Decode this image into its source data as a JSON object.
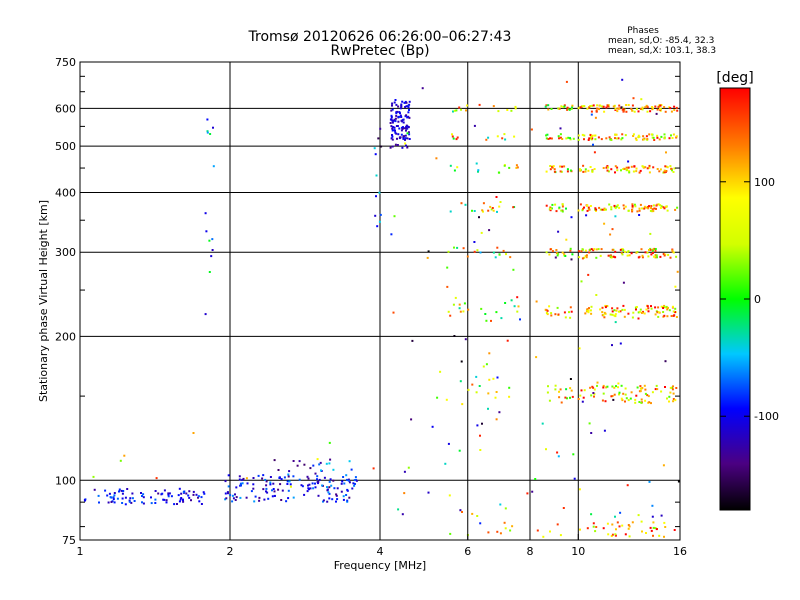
{
  "chart_data": {
    "type": "scatter",
    "title": "Tromsø 20120626 06:26:00–06:27:43",
    "subtitle": "RwPretec (Bp)",
    "xlabel": "Frequency [MHz]",
    "ylabel": "Stationary phase Virtual Height [km]",
    "x_scale": "log",
    "y_scale": "log",
    "xlim": [
      1,
      16
    ],
    "ylim": [
      75,
      750
    ],
    "x_ticks": [
      1,
      2,
      4,
      6,
      8,
      10,
      16
    ],
    "x_tick_labels": [
      "1",
      "2",
      "4",
      "6",
      "8",
      "10",
      "16"
    ],
    "y_ticks": [
      75,
      100,
      200,
      300,
      400,
      500,
      600,
      750
    ],
    "y_tick_labels": [
      "75",
      "100",
      "200",
      "300",
      "400",
      "500",
      "600",
      "750"
    ],
    "grid": true,
    "stats": {
      "heading": "Phases",
      "line_o": "mean, sd,O: -85.4, 32.3",
      "line_x": "mean, sd,X: 103.1, 38.3"
    },
    "colorbar": {
      "label": "[deg]",
      "range": [
        -180,
        180
      ],
      "ticks": [
        100,
        0,
        -100
      ],
      "tick_labels": [
        "100",
        "0",
        "-100"
      ],
      "colormap": "rainbow"
    },
    "clusters": [
      {
        "x": [
          1.02,
          1.78
        ],
        "y": [
          89,
          96
        ],
        "phase": -100,
        "spread": 35,
        "n": 90
      },
      {
        "x": [
          1.95,
          3.6
        ],
        "y": [
          90,
          103
        ],
        "phase": -100,
        "spread": 45,
        "n": 140
      },
      {
        "x": [
          2.4,
          3.6
        ],
        "y": [
          98,
          112
        ],
        "phase": -90,
        "spread": 60,
        "n": 30
      },
      {
        "x": [
          4.2,
          4.6
        ],
        "y": [
          495,
          625
        ],
        "phase": -110,
        "spread": 25,
        "n": 110
      },
      {
        "x": [
          1.78,
          1.86
        ],
        "y": [
          210,
          590
        ],
        "phase": -60,
        "spread": 60,
        "n": 14
      },
      {
        "x": [
          3.9,
          4.05
        ],
        "y": [
          330,
          640
        ],
        "phase": -100,
        "spread": 70,
        "n": 12
      },
      {
        "x": [
          10.0,
          15.8
        ],
        "y": [
          590,
          610
        ],
        "phase": 120,
        "spread": 80,
        "n": 90
      },
      {
        "x": [
          10.0,
          15.8
        ],
        "y": [
          515,
          530
        ],
        "phase": 100,
        "spread": 90,
        "n": 70
      },
      {
        "x": [
          10.0,
          15.8
        ],
        "y": [
          440,
          455
        ],
        "phase": 110,
        "spread": 90,
        "n": 70
      },
      {
        "x": [
          10.0,
          15.8
        ],
        "y": [
          365,
          378
        ],
        "phase": 110,
        "spread": 90,
        "n": 80
      },
      {
        "x": [
          10.0,
          15.8
        ],
        "y": [
          292,
          305
        ],
        "phase": 100,
        "spread": 90,
        "n": 80
      },
      {
        "x": [
          10.0,
          15.8
        ],
        "y": [
          218,
          232
        ],
        "phase": 110,
        "spread": 90,
        "n": 90
      },
      {
        "x": [
          10.0,
          15.8
        ],
        "y": [
          145,
          158
        ],
        "phase": 100,
        "spread": 90,
        "n": 80
      },
      {
        "x": [
          10.0,
          15.8
        ],
        "y": [
          76,
          82
        ],
        "phase": 110,
        "spread": 90,
        "n": 40
      },
      {
        "x": [
          8.6,
          9.8
        ],
        "y": [
          595,
          610
        ],
        "phase": 80,
        "spread": 100,
        "n": 20
      },
      {
        "x": [
          8.6,
          9.8
        ],
        "y": [
          515,
          530
        ],
        "phase": 80,
        "spread": 100,
        "n": 16
      },
      {
        "x": [
          8.6,
          9.8
        ],
        "y": [
          440,
          455
        ],
        "phase": 80,
        "spread": 100,
        "n": 18
      },
      {
        "x": [
          8.6,
          9.8
        ],
        "y": [
          365,
          380
        ],
        "phase": 80,
        "spread": 100,
        "n": 18
      },
      {
        "x": [
          8.6,
          9.8
        ],
        "y": [
          292,
          305
        ],
        "phase": 80,
        "spread": 100,
        "n": 16
      },
      {
        "x": [
          8.6,
          9.8
        ],
        "y": [
          218,
          232
        ],
        "phase": 80,
        "spread": 100,
        "n": 18
      },
      {
        "x": [
          8.6,
          9.8
        ],
        "y": [
          145,
          160
        ],
        "phase": 80,
        "spread": 100,
        "n": 16
      },
      {
        "x": [
          5.4,
          7.6
        ],
        "y": [
          590,
          612
        ],
        "phase": 60,
        "spread": 110,
        "n": 14
      },
      {
        "x": [
          5.4,
          7.6
        ],
        "y": [
          510,
          530
        ],
        "phase": 60,
        "spread": 110,
        "n": 12
      },
      {
        "x": [
          5.4,
          7.6
        ],
        "y": [
          440,
          460
        ],
        "phase": 60,
        "spread": 110,
        "n": 12
      },
      {
        "x": [
          5.4,
          7.6
        ],
        "y": [
          362,
          380
        ],
        "phase": 60,
        "spread": 110,
        "n": 16
      },
      {
        "x": [
          5.4,
          7.6
        ],
        "y": [
          292,
          308
        ],
        "phase": 60,
        "spread": 110,
        "n": 14
      },
      {
        "x": [
          5.4,
          7.6
        ],
        "y": [
          215,
          235
        ],
        "phase": 60,
        "spread": 110,
        "n": 18
      },
      {
        "x": [
          5.4,
          7.6
        ],
        "y": [
          140,
          165
        ],
        "phase": 60,
        "spread": 110,
        "n": 14
      },
      {
        "x": [
          5.4,
          9.5
        ],
        "y": [
          76,
          90
        ],
        "phase": 60,
        "spread": 110,
        "n": 18
      },
      {
        "x": [
          4.2,
          16.0
        ],
        "y": [
          80,
          700
        ],
        "phase": 0,
        "spread": 180,
        "n": 140
      },
      {
        "x": [
          1.05,
          3.9
        ],
        "y": [
          95,
          130
        ],
        "phase": 80,
        "spread": 90,
        "n": 10
      }
    ]
  }
}
